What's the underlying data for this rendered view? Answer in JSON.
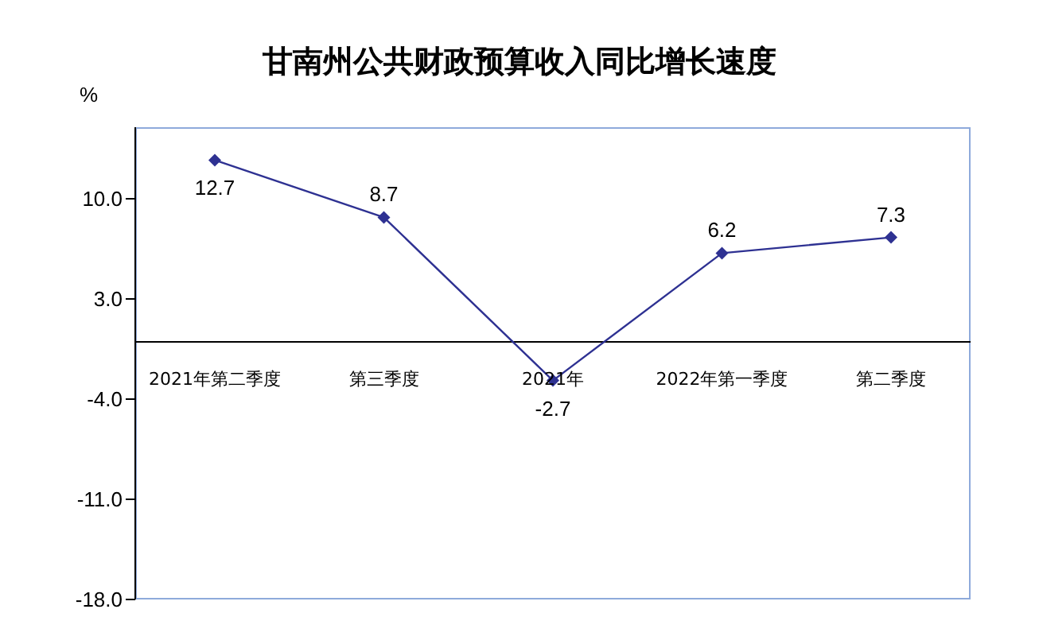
{
  "chart_data": {
    "type": "line",
    "title": "甘南州公共财政预算收入同比增长速度",
    "ylabel": "%",
    "categories": [
      "2021年第二季度",
      "第三季度",
      "2021年",
      "2022年第一季度",
      "第二季度"
    ],
    "series": [
      {
        "color": "#2e3192",
        "values": [
          12.7,
          8.7,
          -2.7,
          6.2,
          7.3
        ]
      }
    ],
    "ylim": [
      -18,
      15
    ],
    "yticks": [
      {
        "value": -18,
        "label": "-18.0"
      },
      {
        "value": -11,
        "label": "-11.0"
      },
      {
        "value": -4,
        "label": "-4.0"
      },
      {
        "value": 3,
        "label": "3.0"
      },
      {
        "value": 10,
        "label": "10.0"
      }
    ],
    "marker": "diamond",
    "line_style": "solid",
    "data_labels": true
  }
}
